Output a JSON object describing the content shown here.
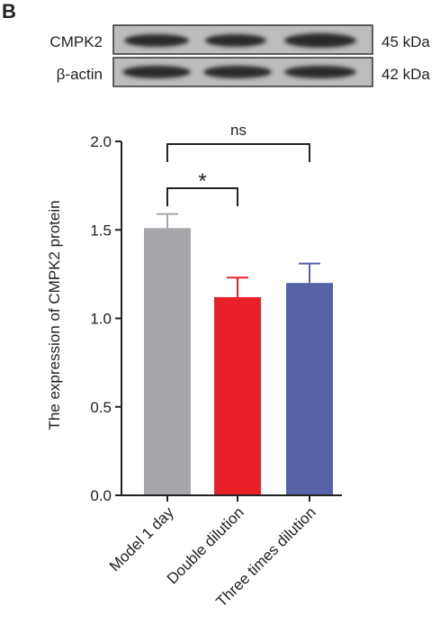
{
  "panel_label": "B",
  "blot": {
    "rows": [
      {
        "label": "CMPK2",
        "size": "45 kDa"
      },
      {
        "label": "β-actin",
        "size": "42 kDa"
      }
    ]
  },
  "chart_data": {
    "type": "bar",
    "y_label": "The expression of CMPK2 protein",
    "categories": [
      "Model 1 day",
      "Double dilution",
      "Three times dilution"
    ],
    "values": [
      1.51,
      1.12,
      1.2
    ],
    "errors": [
      0.08,
      0.11,
      0.11
    ],
    "colors": [
      "#a7a6ab",
      "#e8202a",
      "#5563a6"
    ],
    "ylim": [
      0,
      2.0
    ],
    "yticks": [
      {
        "value": 0,
        "label": "0.0"
      },
      0.5,
      {
        "value": 1.0,
        "label": "1.0"
      },
      1.5,
      {
        "value": 2.0,
        "label": "2.0"
      }
    ],
    "annotations": [
      {
        "label": "ns",
        "from": 0,
        "to": 2
      },
      {
        "label": "*",
        "from": 0,
        "to": 1
      }
    ]
  }
}
